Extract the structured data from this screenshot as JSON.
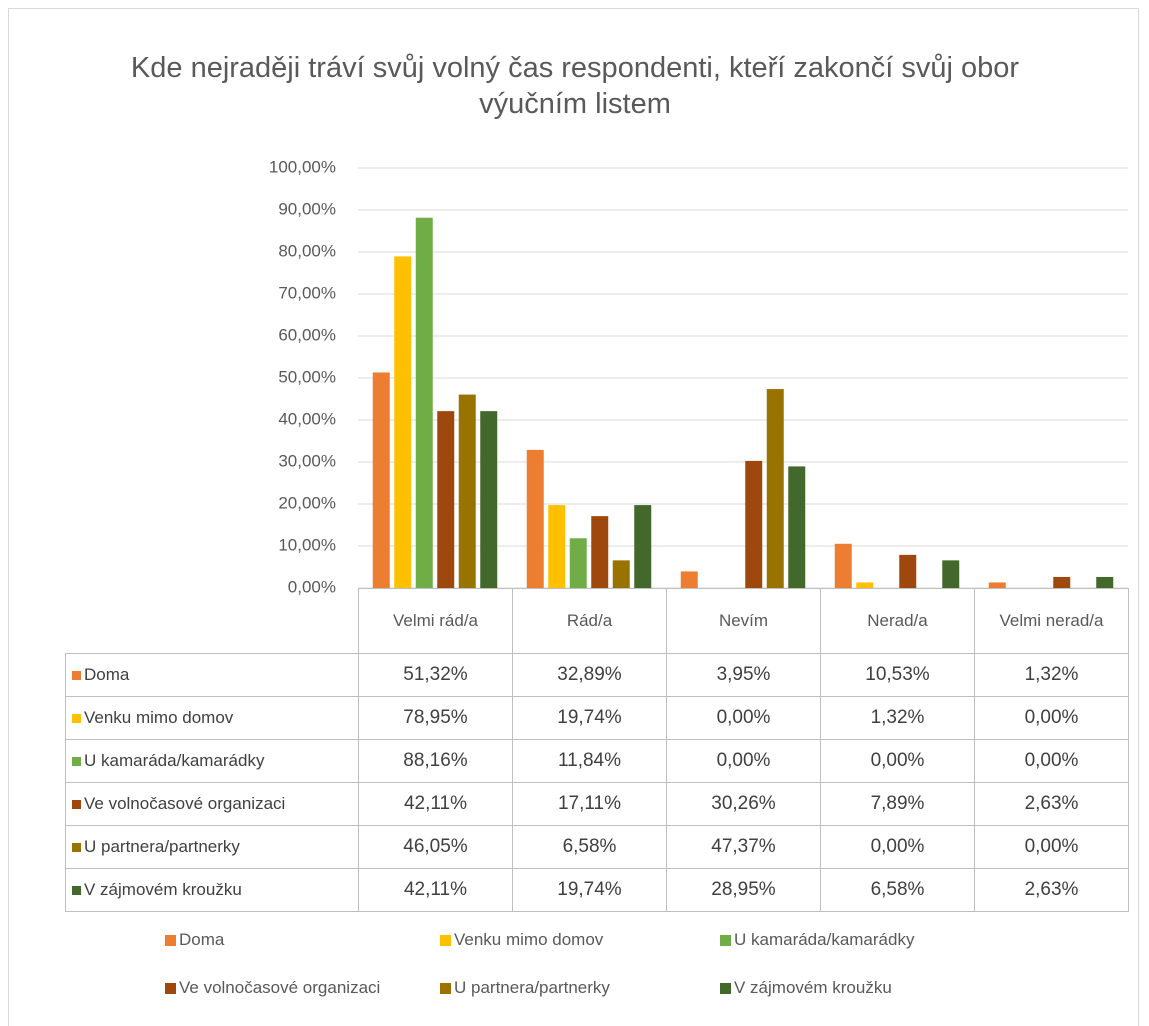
{
  "chart_data": {
    "type": "bar",
    "title": "Kde nejraději tráví svůj volný čas respondenti, kteří zakončí svůj obor výučním listem",
    "categories": [
      "Velmi rád/a",
      "Rád/a",
      "Nevím",
      "Nerad/a",
      "Velmi nerad/a"
    ],
    "ylim": [
      0,
      100
    ],
    "yticks": [
      {
        "value": 0,
        "label": "0,00%"
      },
      {
        "value": 10,
        "label": "10,00%"
      },
      {
        "value": 20,
        "label": "20,00%"
      },
      {
        "value": 30,
        "label": "30,00%"
      },
      {
        "value": 40,
        "label": "40,00%"
      },
      {
        "value": 50,
        "label": "50,00%"
      },
      {
        "value": 60,
        "label": "60,00%"
      },
      {
        "value": 70,
        "label": "70,00%"
      },
      {
        "value": 80,
        "label": "80,00%"
      },
      {
        "value": 90,
        "label": "90,00%"
      },
      {
        "value": 100,
        "label": "100,00%"
      }
    ],
    "grid": true,
    "legend": "bottom",
    "series": [
      {
        "name": "Doma",
        "color": "#ed7d31",
        "values": [
          51.32,
          32.89,
          3.95,
          10.53,
          1.32
        ],
        "value_labels": [
          "51,32%",
          "32,89%",
          "3,95%",
          "10,53%",
          "1,32%"
        ]
      },
      {
        "name": "Venku mimo domov",
        "color": "#ffc000",
        "values": [
          78.95,
          19.74,
          0,
          1.32,
          0
        ],
        "value_labels": [
          "78,95%",
          "19,74%",
          "0,00%",
          "1,32%",
          "0,00%"
        ]
      },
      {
        "name": "U kamaráda/kamarádky",
        "color": "#70ad47",
        "values": [
          88.16,
          11.84,
          0,
          0,
          0
        ],
        "value_labels": [
          "88,16%",
          "11,84%",
          "0,00%",
          "0,00%",
          "0,00%"
        ]
      },
      {
        "name": "Ve volnočasové organizaci",
        "color": "#9e480e",
        "values": [
          42.11,
          17.11,
          30.26,
          7.89,
          2.63
        ],
        "value_labels": [
          "42,11%",
          "17,11%",
          "30,26%",
          "7,89%",
          "2,63%"
        ]
      },
      {
        "name": "U partnera/partnerky",
        "color": "#997300",
        "values": [
          46.05,
          6.58,
          47.37,
          0,
          0
        ],
        "value_labels": [
          "46,05%",
          "6,58%",
          "47,37%",
          "0,00%",
          "0,00%"
        ]
      },
      {
        "name": "V zájmovém kroužku",
        "color": "#43682b",
        "values": [
          42.11,
          19.74,
          28.95,
          6.58,
          2.63
        ],
        "value_labels": [
          "42,11%",
          "19,74%",
          "28,95%",
          "6,58%",
          "2,63%"
        ]
      }
    ]
  }
}
